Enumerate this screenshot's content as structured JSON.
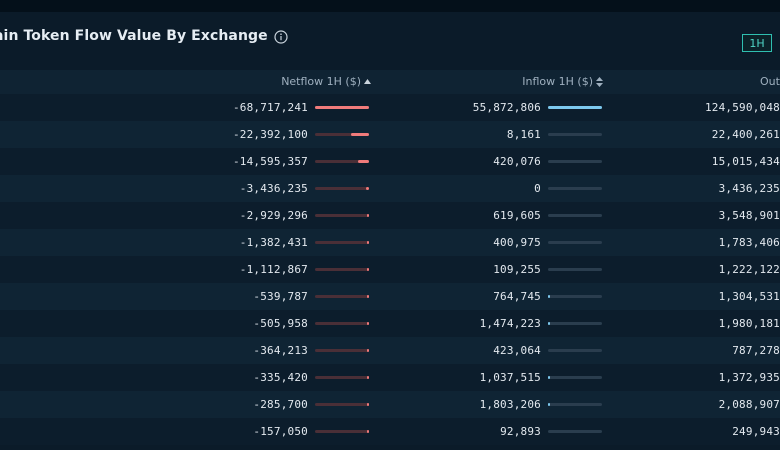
{
  "title": "ain Token Flow Value By Exchange",
  "timeframe_button": "1H",
  "columns": {
    "netflow": "Netflow 1H ($)",
    "inflow": "Inflow 1H ($)",
    "outflow": "Out"
  },
  "rows": [
    {
      "netflow": "-68,717,241",
      "inflow": "55,872,806",
      "outflow": "124,590,048",
      "net_frac": 1.0,
      "in_frac": 1.0
    },
    {
      "netflow": "-22,392,100",
      "inflow": "8,161",
      "outflow": "22,400,261",
      "net_frac": 0.33,
      "in_frac": 0.0
    },
    {
      "netflow": "-14,595,357",
      "inflow": "420,076",
      "outflow": "15,015,434",
      "net_frac": 0.21,
      "in_frac": 0.0
    },
    {
      "netflow": "-3,436,235",
      "inflow": "0",
      "outflow": "3,436,235",
      "net_frac": 0.05,
      "in_frac": 0.0
    },
    {
      "netflow": "-2,929,296",
      "inflow": "619,605",
      "outflow": "3,548,901",
      "net_frac": 0.04,
      "in_frac": 0.0
    },
    {
      "netflow": "-1,382,431",
      "inflow": "400,975",
      "outflow": "1,783,406",
      "net_frac": 0.02,
      "in_frac": 0.0
    },
    {
      "netflow": "-1,112,867",
      "inflow": "109,255",
      "outflow": "1,222,122",
      "net_frac": 0.02,
      "in_frac": 0.0
    },
    {
      "netflow": "-539,787",
      "inflow": "764,745",
      "outflow": "1,304,531",
      "net_frac": 0.01,
      "in_frac": 0.01
    },
    {
      "netflow": "-505,958",
      "inflow": "1,474,223",
      "outflow": "1,980,181",
      "net_frac": 0.01,
      "in_frac": 0.03
    },
    {
      "netflow": "-364,213",
      "inflow": "423,064",
      "outflow": "787,278",
      "net_frac": 0.01,
      "in_frac": 0.0
    },
    {
      "netflow": "-335,420",
      "inflow": "1,037,515",
      "outflow": "1,372,935",
      "net_frac": 0.0,
      "in_frac": 0.02
    },
    {
      "netflow": "-285,700",
      "inflow": "1,803,206",
      "outflow": "2,088,907",
      "net_frac": 0.0,
      "in_frac": 0.03
    },
    {
      "netflow": "-157,050",
      "inflow": "92,893",
      "outflow": "249,943",
      "net_frac": 0.0,
      "in_frac": 0.0
    }
  ],
  "colors": {
    "netflow_bar": "#f07b7b",
    "inflow_bar": "#7cc8ee",
    "accent": "#4fd6c6"
  }
}
